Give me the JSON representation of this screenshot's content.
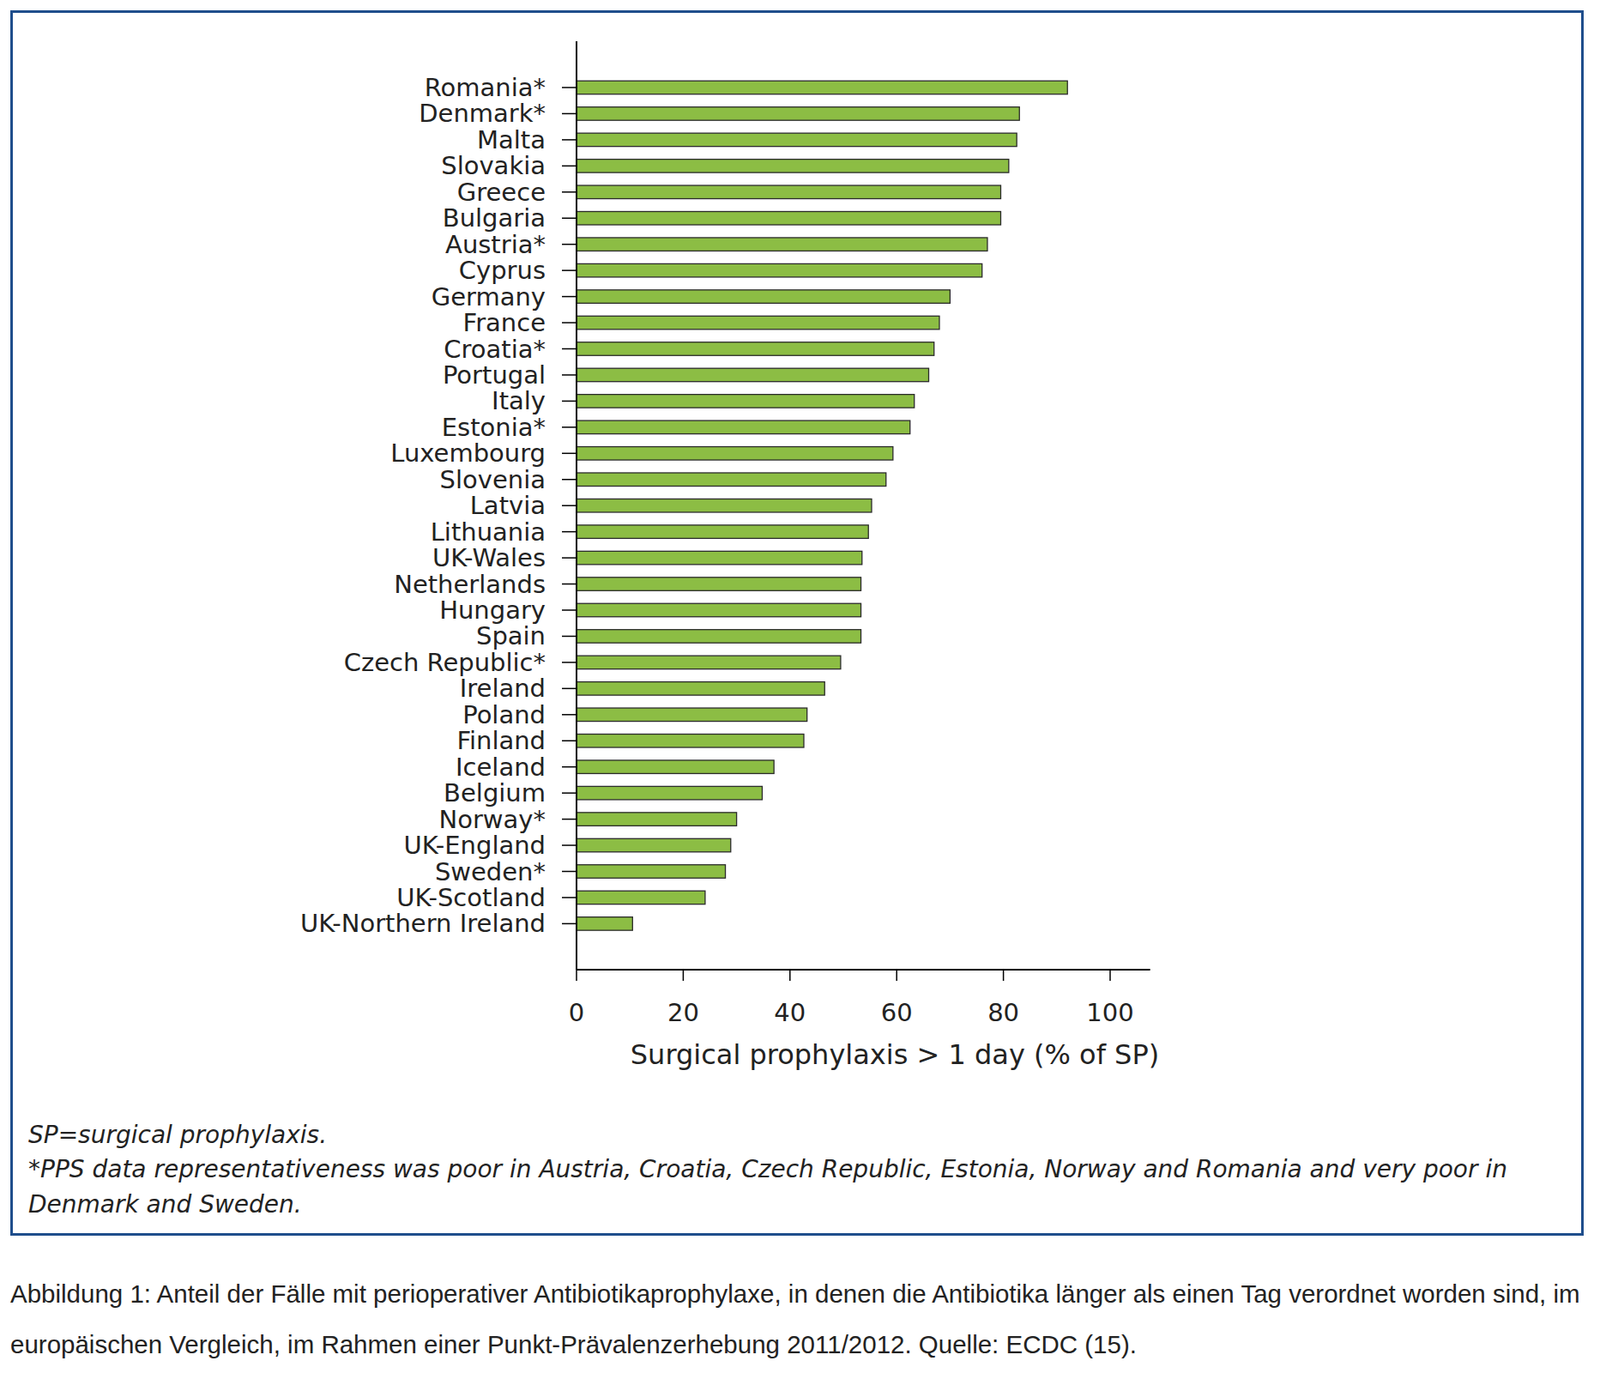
{
  "chart_data": {
    "type": "bar",
    "orientation": "horizontal",
    "categories": [
      "Romania*",
      "Denmark*",
      "Malta",
      "Slovakia",
      "Greece",
      "Bulgaria",
      "Austria*",
      "Cyprus",
      "Germany",
      "France",
      "Croatia*",
      "Portugal",
      "Italy",
      "Estonia*",
      "Luxembourg",
      "Slovenia",
      "Latvia",
      "Lithuania",
      "UK-Wales",
      "Netherlands",
      "Hungary",
      "Spain",
      "Czech Republic*",
      "Ireland",
      "Poland",
      "Finland",
      "Iceland",
      "Belgium",
      "Norway*",
      "UK-England",
      "Sweden*",
      "UK-Scotland",
      "UK-Northern Ireland"
    ],
    "values": [
      92,
      83,
      82.5,
      81,
      79.5,
      79.5,
      77,
      76,
      70,
      68,
      67,
      66,
      63.3,
      62.5,
      59.3,
      58,
      55.3,
      54.7,
      53.5,
      53.3,
      53.3,
      53.3,
      49.5,
      46.5,
      43.2,
      42.6,
      37,
      34.8,
      30,
      28.9,
      27.9,
      24.1,
      10.5
    ],
    "color": "#8cbd44",
    "xlabel": "Surgical prophylaxis > 1 day (% of SP)",
    "xlim": [
      0,
      107.5
    ],
    "xticks": [
      0,
      20,
      40,
      60,
      80,
      100
    ],
    "grid": false,
    "notes": [
      "SP=surgical prophylaxis.",
      "*PPS data representativeness was poor in Austria, Croatia, Czech Republic, Estonia, Norway and Romania and very poor in Denmark and Sweden."
    ],
    "caption": "Abbildung 1: Anteil der Fälle mit perioperativer Antibiotikaprophylaxe, in denen die Antibiotika länger als einen Tag verordnet worden sind, im europäischen Vergleich, im Rahmen einer Punkt-Prävalenzerhebung 2011/2012. Quelle: ECDC (15)."
  }
}
